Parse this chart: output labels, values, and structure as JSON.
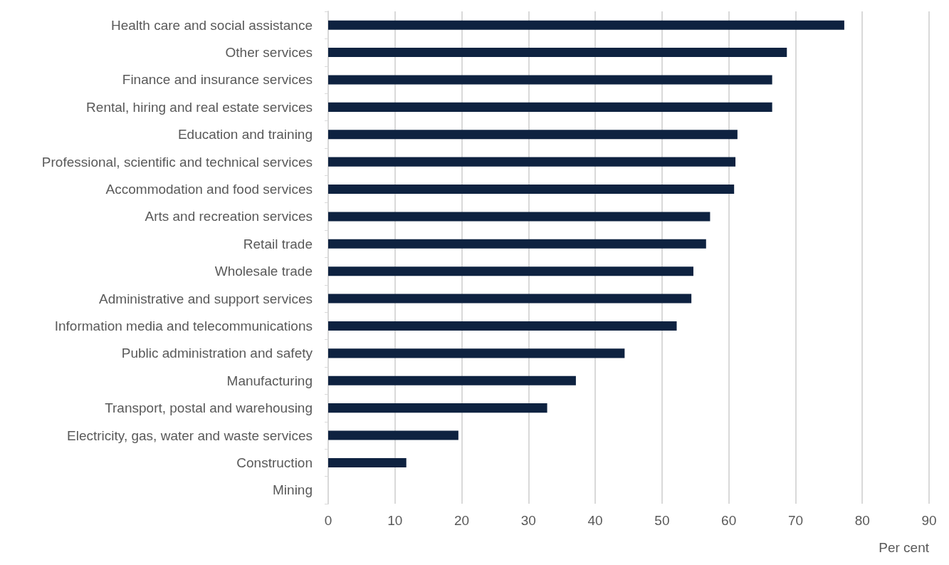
{
  "chart_data": {
    "type": "bar",
    "orientation": "horizontal",
    "xlabel": "Per cent",
    "categories": [
      "Health care and social assistance",
      "Other services",
      "Finance and insurance services",
      "Rental, hiring and real estate services",
      "Education and training",
      "Professional, scientific and technical services",
      "Accommodation and food services",
      "Arts and recreation services",
      "Retail trade",
      "Wholesale trade",
      "Administrative and support services",
      "Information media and telecommunications",
      "Public administration and safety",
      "Manufacturing",
      "Transport, postal and warehousing",
      "Electricity, gas, water and waste services",
      "Construction",
      "Mining"
    ],
    "values": [
      77.3,
      68.7,
      66.5,
      66.5,
      61.3,
      61.0,
      60.8,
      57.2,
      56.6,
      54.7,
      54.4,
      52.2,
      44.4,
      37.1,
      32.8,
      19.5,
      11.7,
      0
    ],
    "color": "#0e2240",
    "xlim": [
      0,
      90
    ],
    "xticks": [
      0,
      10,
      20,
      30,
      40,
      50,
      60,
      70,
      80,
      90
    ],
    "grid": "x"
  }
}
